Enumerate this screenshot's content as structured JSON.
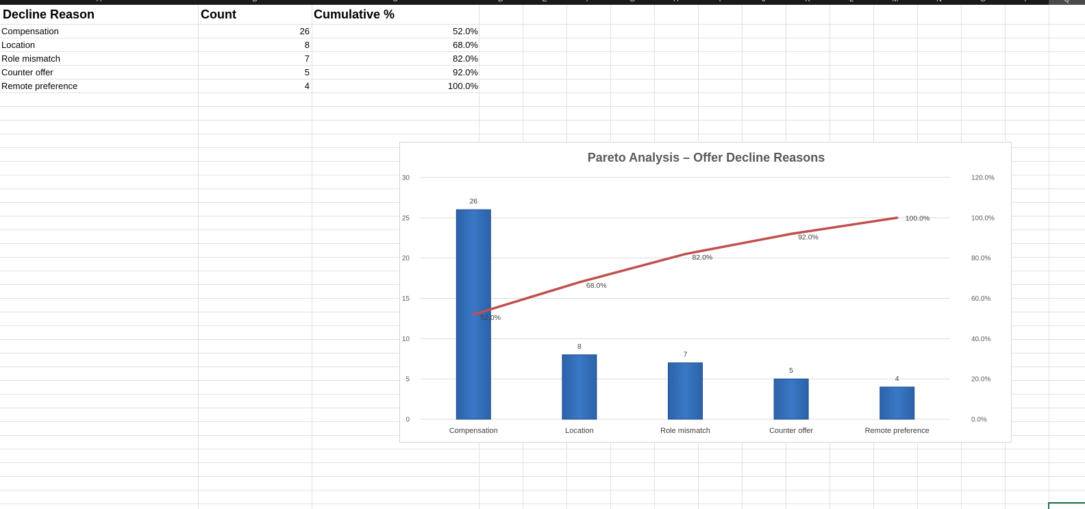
{
  "sheet": {
    "column_letters": [
      "A",
      "B",
      "C",
      "D",
      "E",
      "F",
      "G",
      "H",
      "I",
      "J",
      "K",
      "L",
      "M",
      "N",
      "O",
      "P",
      "Q"
    ],
    "headers": [
      "Decline Reason",
      "Count",
      "Cumulative %"
    ],
    "rows": [
      {
        "reason": "Compensation",
        "count": "26",
        "cumulative": "52.0%"
      },
      {
        "reason": "Location",
        "count": "8",
        "cumulative": "68.0%"
      },
      {
        "reason": "Role mismatch",
        "count": "7",
        "cumulative": "82.0%"
      },
      {
        "reason": "Counter offer",
        "count": "5",
        "cumulative": "92.0%"
      },
      {
        "reason": "Remote preference",
        "count": "4",
        "cumulative": "100.0%"
      }
    ]
  },
  "colors": {
    "bar_fill": "#3a78c6",
    "bar_border": "#1f4e8c",
    "line": "#c0504d",
    "gridline": "#d9d9d9",
    "selection": "#217346"
  },
  "chart_data": {
    "type": "bar",
    "title": "Pareto Analysis – Offer Decline Reasons",
    "categories": [
      "Compensation",
      "Location",
      "Role mismatch",
      "Counter offer",
      "Remote preference"
    ],
    "series": [
      {
        "type": "bar",
        "axis": "primary",
        "values": [
          26,
          8,
          7,
          5,
          4
        ],
        "labels": [
          "26",
          "8",
          "7",
          "5",
          "4"
        ]
      },
      {
        "type": "line",
        "axis": "secondary",
        "values": [
          52.0,
          68.0,
          82.0,
          92.0,
          100.0
        ],
        "labels": [
          "52.0%",
          "68.0%",
          "82.0%",
          "92.0%",
          "100.0%"
        ]
      }
    ],
    "ylim": [
      0,
      30
    ],
    "y_ticks": [
      "0",
      "5",
      "10",
      "15",
      "20",
      "25",
      "30"
    ],
    "y2lim": [
      0,
      120
    ],
    "y2_ticks": [
      "0.0%",
      "20.0%",
      "40.0%",
      "60.0%",
      "80.0%",
      "100.0%",
      "120.0%"
    ],
    "grid": true,
    "legend": "none"
  }
}
